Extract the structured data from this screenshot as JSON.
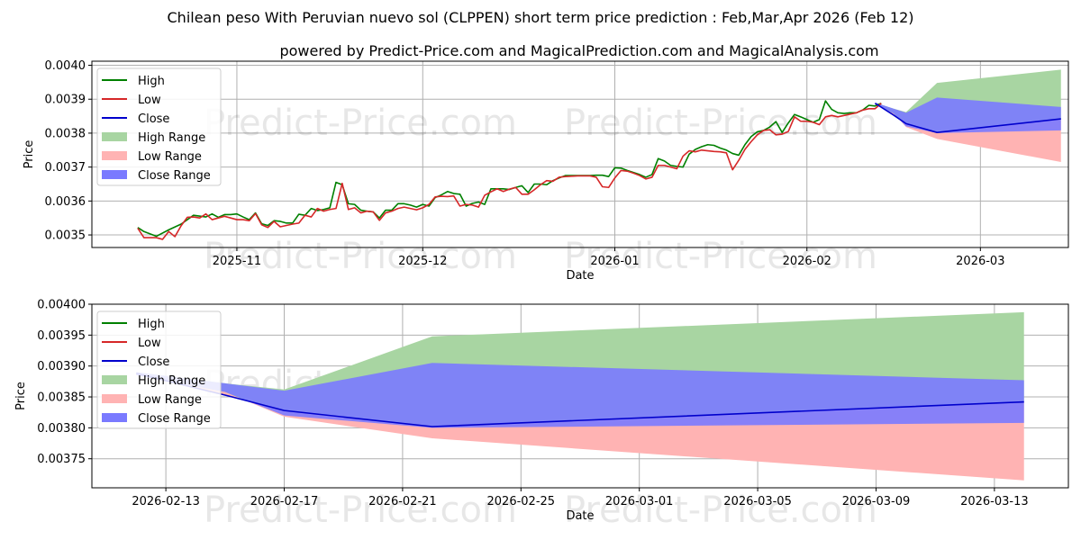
{
  "title": "Chilean peso With Peruvian nuevo sol (CLPPEN) short term price prediction : Feb,Mar,Apr 2026 (Feb 12)",
  "subtitle": "powered by Predict-Price.com and MagicalPrediction.com and MagicalAnalysis.com",
  "watermark": "Predict-Price.com",
  "colors": {
    "high": "#008000",
    "low": "#d62728",
    "close": "#0000cc",
    "high_range": "#a8d5a2",
    "low_range": "#ffb3b3",
    "close_range": "#7a7aff"
  },
  "legend": [
    "High",
    "Low",
    "Close",
    "High Range",
    "Low Range",
    "Close Range"
  ],
  "chart_data": [
    {
      "type": "line",
      "panel": "top",
      "xlabel": "Date",
      "ylabel": "Price",
      "x_ticks": [
        {
          "day": 0,
          "label": "2025-11"
        },
        {
          "day": 30,
          "label": "2025-12"
        },
        {
          "day": 61,
          "label": "2026-01"
        },
        {
          "day": 92,
          "label": "2026-02"
        },
        {
          "day": 120,
          "label": "2026-03"
        }
      ],
      "x_range_days": [
        -23.4,
        134.2
      ],
      "y_ticks": [
        {
          "value": 0.0035,
          "label": "0.0035"
        },
        {
          "value": 0.0036,
          "label": "0.0036"
        },
        {
          "value": 0.0037,
          "label": "0.0037"
        },
        {
          "value": 0.0038,
          "label": "0.0038"
        },
        {
          "value": 0.0039,
          "label": "0.0039"
        },
        {
          "value": 0.004,
          "label": "0.0040"
        }
      ],
      "ylim": [
        0.003463,
        0.004012
      ],
      "high": [
        [
          -16,
          0.003522
        ],
        [
          -15,
          0.00351
        ],
        [
          -13,
          0.003496
        ],
        [
          -11,
          0.003515
        ],
        [
          -9,
          0.003532
        ],
        [
          -7,
          0.003558
        ],
        [
          -5,
          0.003553
        ],
        [
          -4,
          0.003562
        ],
        [
          -3,
          0.003552
        ],
        [
          -2,
          0.00356
        ],
        [
          -1,
          0.00356
        ],
        [
          0,
          0.003562
        ],
        [
          1,
          0.003553
        ],
        [
          2,
          0.003545
        ],
        [
          3,
          0.003565
        ],
        [
          4,
          0.003533
        ],
        [
          5,
          0.003528
        ],
        [
          6,
          0.003542
        ],
        [
          7,
          0.00354
        ],
        [
          8,
          0.003535
        ],
        [
          9,
          0.003535
        ],
        [
          10,
          0.003561
        ],
        [
          11,
          0.003558
        ],
        [
          12,
          0.003578
        ],
        [
          13,
          0.003572
        ],
        [
          14,
          0.003575
        ],
        [
          15,
          0.00358
        ],
        [
          16,
          0.003655
        ],
        [
          17,
          0.003648
        ],
        [
          18,
          0.003592
        ],
        [
          19,
          0.00359
        ],
        [
          20,
          0.003573
        ],
        [
          21,
          0.00357
        ],
        [
          22,
          0.003568
        ],
        [
          23,
          0.00355
        ],
        [
          24,
          0.003573
        ],
        [
          25,
          0.003573
        ],
        [
          26,
          0.003592
        ],
        [
          27,
          0.003592
        ],
        [
          28,
          0.003588
        ],
        [
          29,
          0.003582
        ],
        [
          30,
          0.00359
        ],
        [
          31,
          0.003585
        ],
        [
          32,
          0.00361
        ],
        [
          33,
          0.003618
        ],
        [
          34,
          0.003628
        ],
        [
          35,
          0.003622
        ],
        [
          36,
          0.00362
        ],
        [
          37,
          0.003585
        ],
        [
          38,
          0.003593
        ],
        [
          39,
          0.003597
        ],
        [
          40,
          0.00359
        ],
        [
          41,
          0.003636
        ],
        [
          42,
          0.003636
        ],
        [
          43,
          0.003636
        ],
        [
          44,
          0.003634
        ],
        [
          45,
          0.00364
        ],
        [
          46,
          0.003645
        ],
        [
          47,
          0.003625
        ],
        [
          48,
          0.00365
        ],
        [
          49,
          0.00365
        ],
        [
          50,
          0.003648
        ],
        [
          51,
          0.00366
        ],
        [
          52,
          0.003668
        ],
        [
          53,
          0.003675
        ],
        [
          54,
          0.003675
        ],
        [
          55,
          0.003675
        ],
        [
          56,
          0.003675
        ],
        [
          57,
          0.003675
        ],
        [
          58,
          0.003676
        ],
        [
          59,
          0.003676
        ],
        [
          60,
          0.003672
        ],
        [
          61,
          0.003698
        ],
        [
          62,
          0.003697
        ],
        [
          63,
          0.00369
        ],
        [
          64,
          0.003684
        ],
        [
          65,
          0.003678
        ],
        [
          66,
          0.00367
        ],
        [
          67,
          0.003678
        ],
        [
          68,
          0.003725
        ],
        [
          69,
          0.003718
        ],
        [
          70,
          0.003705
        ],
        [
          71,
          0.003702
        ],
        [
          72,
          0.0037
        ],
        [
          73,
          0.003738
        ],
        [
          74,
          0.003752
        ],
        [
          75,
          0.00376
        ],
        [
          76,
          0.003766
        ],
        [
          77,
          0.003764
        ],
        [
          78,
          0.003756
        ],
        [
          79,
          0.00375
        ],
        [
          80,
          0.00374
        ],
        [
          81,
          0.003735
        ],
        [
          82,
          0.003766
        ],
        [
          83,
          0.00379
        ],
        [
          84,
          0.003804
        ],
        [
          85,
          0.003808
        ],
        [
          86,
          0.003818
        ],
        [
          87,
          0.003834
        ],
        [
          88,
          0.003802
        ],
        [
          89,
          0.00383
        ],
        [
          90,
          0.003855
        ],
        [
          91,
          0.003848
        ],
        [
          92,
          0.00384
        ],
        [
          93,
          0.003832
        ],
        [
          94,
          0.00384
        ],
        [
          95,
          0.003895
        ],
        [
          96,
          0.00387
        ],
        [
          97,
          0.00386
        ],
        [
          98,
          0.003858
        ],
        [
          99,
          0.00386
        ],
        [
          100,
          0.00386
        ],
        [
          101,
          0.003868
        ],
        [
          102,
          0.003882
        ],
        [
          103,
          0.00388
        ],
        [
          104,
          0.003888
        ]
      ],
      "low": [
        [
          -16,
          0.00352
        ],
        [
          -15,
          0.003492
        ],
        [
          -13,
          0.003492
        ],
        [
          -12,
          0.003487
        ],
        [
          -11,
          0.00351
        ],
        [
          -10,
          0.003495
        ],
        [
          -9,
          0.003527
        ],
        [
          -8,
          0.003552
        ],
        [
          -7,
          0.003553
        ],
        [
          -6,
          0.00355
        ],
        [
          -5,
          0.003562
        ],
        [
          -4,
          0.003545
        ],
        [
          -3,
          0.00355
        ],
        [
          -2,
          0.003555
        ],
        [
          -1,
          0.00355
        ],
        [
          0,
          0.003545
        ],
        [
          1,
          0.003545
        ],
        [
          2,
          0.003542
        ],
        [
          3,
          0.003563
        ],
        [
          4,
          0.00353
        ],
        [
          5,
          0.003522
        ],
        [
          6,
          0.00354
        ],
        [
          7,
          0.003524
        ],
        [
          8,
          0.003528
        ],
        [
          9,
          0.003532
        ],
        [
          10,
          0.003535
        ],
        [
          11,
          0.003558
        ],
        [
          12,
          0.003553
        ],
        [
          13,
          0.003578
        ],
        [
          14,
          0.00357
        ],
        [
          15,
          0.003575
        ],
        [
          16,
          0.003578
        ],
        [
          17,
          0.003652
        ],
        [
          18,
          0.003575
        ],
        [
          19,
          0.00358
        ],
        [
          20,
          0.003565
        ],
        [
          21,
          0.00357
        ],
        [
          22,
          0.003568
        ],
        [
          23,
          0.003543
        ],
        [
          24,
          0.003565
        ],
        [
          25,
          0.00357
        ],
        [
          26,
          0.003578
        ],
        [
          27,
          0.003582
        ],
        [
          28,
          0.003578
        ],
        [
          29,
          0.003574
        ],
        [
          30,
          0.00358
        ],
        [
          31,
          0.00359
        ],
        [
          32,
          0.003612
        ],
        [
          33,
          0.003614
        ],
        [
          34,
          0.003613
        ],
        [
          35,
          0.003615
        ],
        [
          36,
          0.003585
        ],
        [
          37,
          0.00359
        ],
        [
          38,
          0.003588
        ],
        [
          39,
          0.003582
        ],
        [
          40,
          0.003617
        ],
        [
          41,
          0.003627
        ],
        [
          42,
          0.003636
        ],
        [
          43,
          0.003628
        ],
        [
          44,
          0.003635
        ],
        [
          45,
          0.00364
        ],
        [
          46,
          0.00362
        ],
        [
          47,
          0.00362
        ],
        [
          48,
          0.003633
        ],
        [
          49,
          0.003648
        ],
        [
          50,
          0.00366
        ],
        [
          51,
          0.003658
        ],
        [
          52,
          0.00367
        ],
        [
          53,
          0.003672
        ],
        [
          54,
          0.003673
        ],
        [
          55,
          0.003674
        ],
        [
          56,
          0.003674
        ],
        [
          57,
          0.003674
        ],
        [
          58,
          0.00367
        ],
        [
          59,
          0.003642
        ],
        [
          60,
          0.00364
        ],
        [
          61,
          0.003668
        ],
        [
          62,
          0.00369
        ],
        [
          63,
          0.003688
        ],
        [
          64,
          0.003682
        ],
        [
          65,
          0.003675
        ],
        [
          66,
          0.003665
        ],
        [
          67,
          0.00367
        ],
        [
          68,
          0.003705
        ],
        [
          69,
          0.003705
        ],
        [
          70,
          0.0037
        ],
        [
          71,
          0.003695
        ],
        [
          72,
          0.003732
        ],
        [
          73,
          0.003748
        ],
        [
          74,
          0.003745
        ],
        [
          75,
          0.00375
        ],
        [
          76,
          0.003748
        ],
        [
          77,
          0.003746
        ],
        [
          78,
          0.003745
        ],
        [
          79,
          0.003742
        ],
        [
          80,
          0.003692
        ],
        [
          81,
          0.00372
        ],
        [
          82,
          0.003752
        ],
        [
          83,
          0.003775
        ],
        [
          84,
          0.003795
        ],
        [
          85,
          0.003808
        ],
        [
          86,
          0.00381
        ],
        [
          87,
          0.003795
        ],
        [
          88,
          0.003797
        ],
        [
          89,
          0.003805
        ],
        [
          90,
          0.003848
        ],
        [
          91,
          0.003835
        ],
        [
          92,
          0.003835
        ],
        [
          93,
          0.003832
        ],
        [
          94,
          0.003825
        ],
        [
          95,
          0.003848
        ],
        [
          96,
          0.003852
        ],
        [
          97,
          0.003848
        ],
        [
          98,
          0.003852
        ],
        [
          99,
          0.003856
        ],
        [
          100,
          0.00386
        ],
        [
          101,
          0.003868
        ],
        [
          102,
          0.003872
        ],
        [
          103,
          0.003872
        ],
        [
          104,
          0.003888
        ]
      ],
      "forecast": [
        {
          "day": 103,
          "high": 0.00389,
          "low": 0.003885,
          "close_hi": 0.00389,
          "close_lo": 0.003885,
          "close": 0.003888
        },
        {
          "day": 106,
          "high": 0.003872,
          "low": 0.003858,
          "close_hi": 0.003872,
          "close_lo": 0.003858,
          "close": 0.003853
        },
        {
          "day": 108,
          "high": 0.003862,
          "low": 0.003818,
          "close_hi": 0.00386,
          "close_lo": 0.00382,
          "close": 0.003828
        },
        {
          "day": 113,
          "high": 0.003948,
          "low": 0.003783,
          "close_hi": 0.003905,
          "close_lo": 0.0038,
          "close": 0.003802
        },
        {
          "day": 133,
          "high": 0.003987,
          "low": 0.003715,
          "close_hi": 0.003877,
          "close_lo": 0.003808,
          "close": 0.003842
        }
      ]
    },
    {
      "type": "area",
      "panel": "bottom",
      "xlabel": "Date",
      "ylabel": "Price",
      "x_ticks": [
        {
          "day": 0,
          "label": "2026-02-13"
        },
        {
          "day": 4,
          "label": "2026-02-17"
        },
        {
          "day": 8,
          "label": "2026-02-21"
        },
        {
          "day": 12,
          "label": "2026-02-25"
        },
        {
          "day": 16,
          "label": "2026-03-01"
        },
        {
          "day": 20,
          "label": "2026-03-05"
        },
        {
          "day": 24,
          "label": "2026-03-09"
        },
        {
          "day": 28,
          "label": "2026-03-13"
        }
      ],
      "x_range_days": [
        -2.5,
        30.5
      ],
      "y_ticks": [
        {
          "value": 0.00375,
          "label": "0.00375"
        },
        {
          "value": 0.0038,
          "label": "0.00380"
        },
        {
          "value": 0.00385,
          "label": "0.00385"
        },
        {
          "value": 0.0039,
          "label": "0.00390"
        },
        {
          "value": 0.00395,
          "label": "0.00395"
        },
        {
          "value": 0.004,
          "label": "0.00400"
        }
      ],
      "ylim": [
        0.003703,
        0.004
      ],
      "forecast": [
        {
          "day": -1,
          "high": 0.00389,
          "low": 0.003885,
          "close_hi": 0.00389,
          "close_lo": 0.003885,
          "close": 0.003888
        },
        {
          "day": 2,
          "high": 0.003872,
          "low": 0.003858,
          "close_hi": 0.003872,
          "close_lo": 0.003858,
          "close": 0.003853
        },
        {
          "day": 4,
          "high": 0.003862,
          "low": 0.003818,
          "close_hi": 0.00386,
          "close_lo": 0.00382,
          "close": 0.003828
        },
        {
          "day": 9,
          "high": 0.003948,
          "low": 0.003783,
          "close_hi": 0.003905,
          "close_lo": 0.0038,
          "close": 0.003802
        },
        {
          "day": 29,
          "high": 0.003987,
          "low": 0.003715,
          "close_hi": 0.003877,
          "close_lo": 0.003808,
          "close": 0.003842
        }
      ]
    }
  ]
}
